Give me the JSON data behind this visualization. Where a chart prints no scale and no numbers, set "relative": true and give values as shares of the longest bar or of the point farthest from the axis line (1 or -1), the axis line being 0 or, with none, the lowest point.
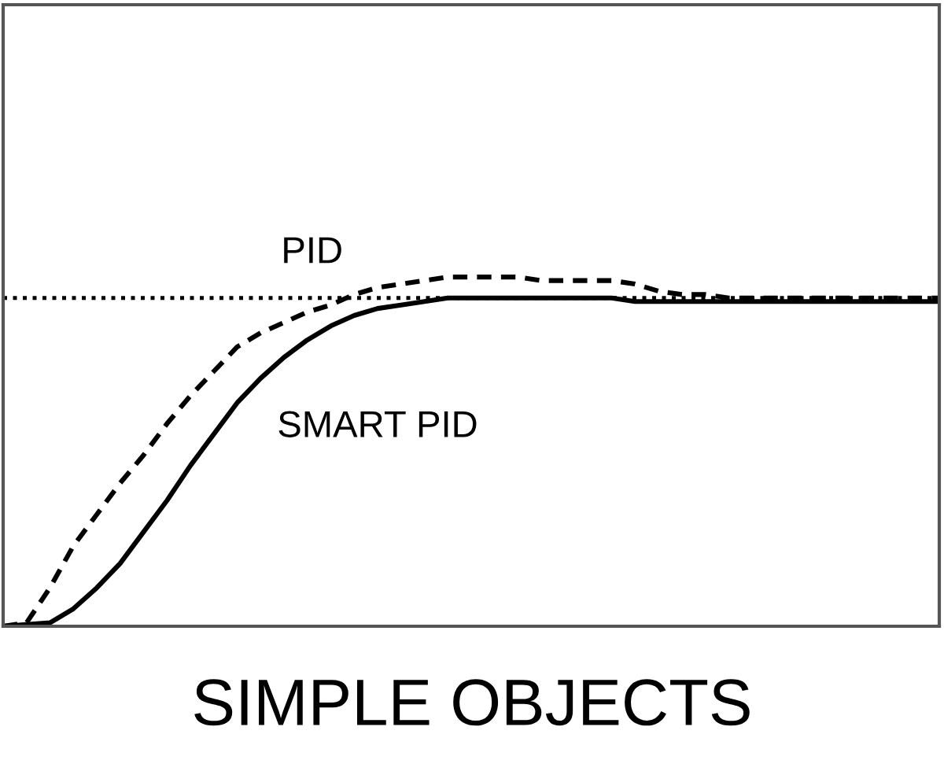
{
  "chart_data": {
    "type": "line",
    "xlabel": "SIMPLE OBJECTS",
    "relative": true,
    "tick_labels": false,
    "categories": [
      null,
      null,
      null,
      null,
      null,
      null,
      null,
      null,
      null,
      null,
      null,
      null,
      null,
      null,
      null,
      null,
      null,
      null,
      null,
      null,
      null,
      null,
      null,
      null,
      null,
      null,
      null,
      null,
      null,
      null,
      null,
      null,
      null,
      null,
      null,
      null,
      null,
      null,
      null,
      null,
      null
    ],
    "series": [
      {
        "name": "PID",
        "color": "#000000",
        "line_style": "dashed",
        "values": [
          0,
          0.01,
          0.11,
          0.23,
          0.32,
          0.41,
          0.49,
          0.58,
          0.66,
          0.73,
          0.8,
          0.84,
          0.87,
          0.9,
          0.92,
          0.95,
          0.97,
          0.98,
          0.99,
          1.0,
          1.0,
          1.0,
          1.0,
          0.99,
          0.99,
          0.99,
          0.99,
          0.98,
          0.96,
          0.95,
          0.95,
          0.94,
          0.94,
          0.94,
          0.94,
          0.94,
          0.94,
          0.94,
          0.94,
          0.94,
          0.94
        ]
      },
      {
        "name": "SMART PID",
        "color": "#000000",
        "line_style": "solid",
        "values": [
          0,
          0.005,
          0.01,
          0.05,
          0.11,
          0.18,
          0.27,
          0.36,
          0.46,
          0.55,
          0.64,
          0.71,
          0.77,
          0.82,
          0.86,
          0.89,
          0.91,
          0.92,
          0.93,
          0.94,
          0.94,
          0.94,
          0.94,
          0.94,
          0.94,
          0.94,
          0.94,
          0.93,
          0.93,
          0.93,
          0.93,
          0.93,
          0.93,
          0.93,
          0.93,
          0.93,
          0.93,
          0.93,
          0.93,
          0.93,
          0.93
        ]
      }
    ],
    "ref_lines": [
      {
        "axis": "y",
        "value": 0.94,
        "color": "#000000",
        "line_style": "dotted"
      }
    ]
  }
}
